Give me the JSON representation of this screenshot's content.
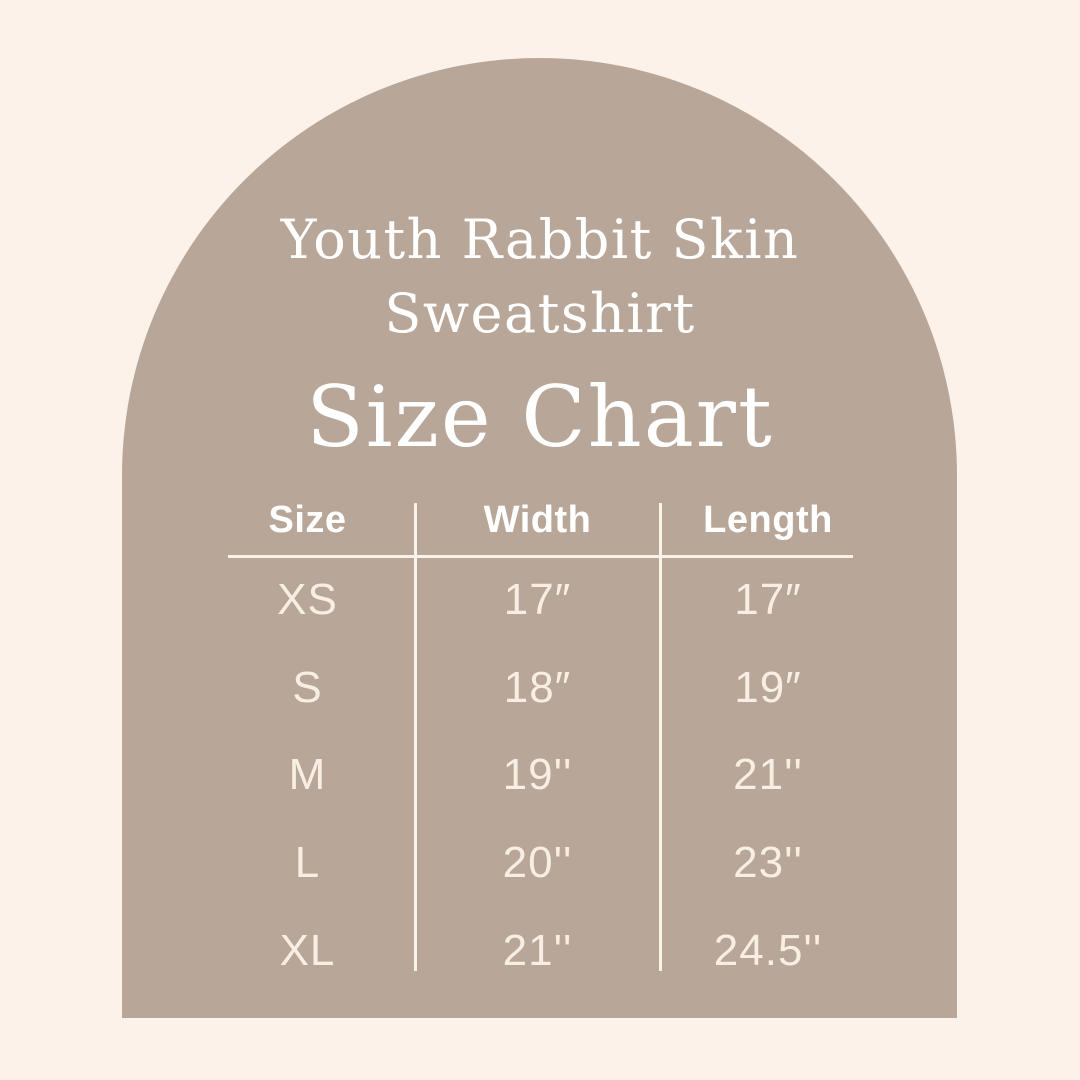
{
  "colors": {
    "background": "#FCF2EA",
    "arch": "#B8A698",
    "heading_text": "#FFFFFF",
    "value_text": "#F8EEE3",
    "divider": "#FAF3EA"
  },
  "header": {
    "product_lines": [
      "Youth Rabbit Skin",
      "Sweatshirt"
    ],
    "product": "Youth Rabbit Skin Sweatshirt"
  },
  "chart_data": {
    "type": "table",
    "title": "Size Chart",
    "subject": "Youth Rabbit Skin Sweatshirt",
    "columns": [
      "Size",
      "Width",
      "Length"
    ],
    "rows": [
      {
        "size": "XS",
        "width": "17″",
        "length": "17″"
      },
      {
        "size": "S",
        "width": "18″",
        "length": "19″"
      },
      {
        "size": "M",
        "width": "19''",
        "length": "21''"
      },
      {
        "size": "L",
        "width": "20''",
        "length": "23''"
      },
      {
        "size": "XL",
        "width": "21''",
        "length": "24.5''"
      }
    ],
    "units": "inches",
    "layout": {
      "column_separators": true,
      "header_underline": true,
      "grid": "partial"
    }
  }
}
